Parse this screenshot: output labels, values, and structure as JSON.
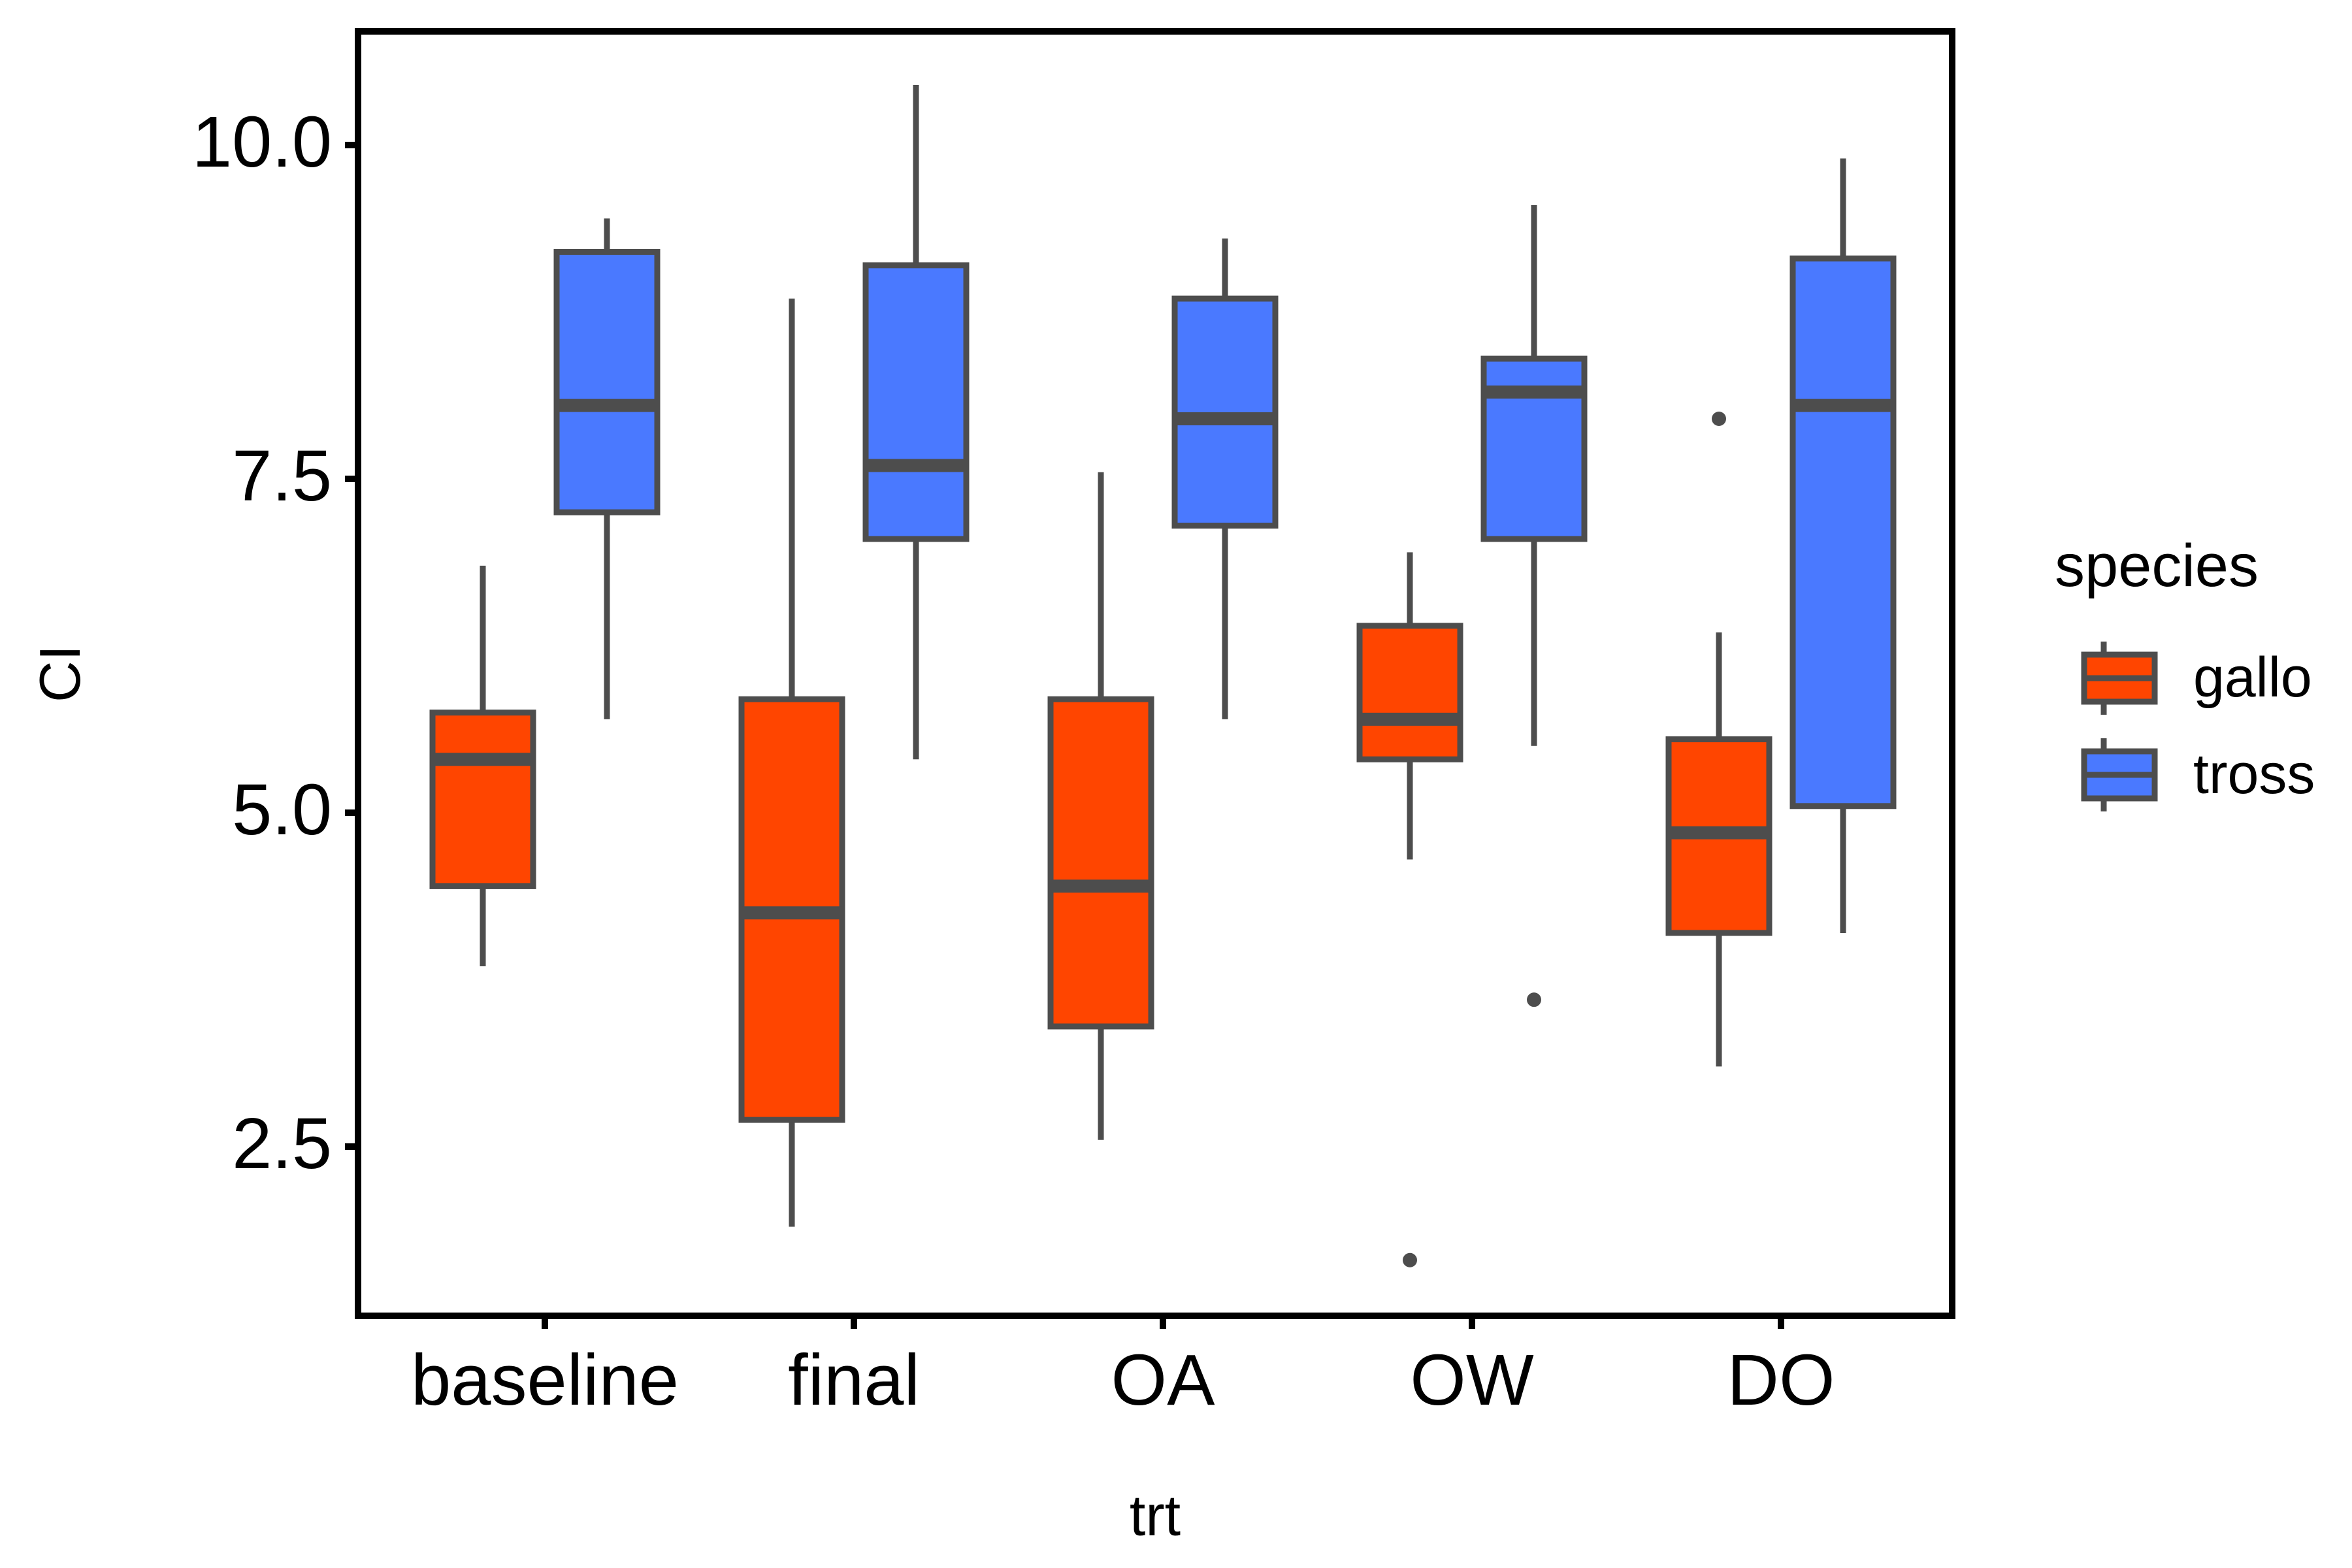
{
  "chart_data": {
    "type": "boxplot",
    "xlabel": "trt",
    "ylabel": "CI",
    "categories": [
      "baseline",
      "final",
      "OA",
      "OW",
      "DO"
    ],
    "y_ticks": [
      "2.5",
      "5.0",
      "7.5",
      "10.0"
    ],
    "y_tick_values": [
      2.5,
      5.0,
      7.5,
      10.0
    ],
    "ylim": [
      1.2,
      10.9
    ],
    "grid": false,
    "legend": {
      "title": "species",
      "position": "right",
      "entries": [
        "gallo",
        "tross"
      ]
    },
    "series": [
      {
        "name": "gallo",
        "color": "#FF4500",
        "boxes": [
          {
            "min": 3.85,
            "q1": 4.45,
            "median": 5.4,
            "q3": 5.75,
            "max": 6.85,
            "outliers": []
          },
          {
            "min": 1.9,
            "q1": 2.7,
            "median": 4.25,
            "q3": 5.85,
            "max": 8.85,
            "outliers": []
          },
          {
            "min": 2.55,
            "q1": 3.4,
            "median": 4.45,
            "q3": 5.85,
            "max": 7.55,
            "outliers": []
          },
          {
            "min": 4.65,
            "q1": 5.4,
            "median": 5.7,
            "q3": 6.4,
            "max": 6.95,
            "outliers": [
              1.65
            ]
          },
          {
            "min": 3.1,
            "q1": 4.1,
            "median": 4.85,
            "q3": 5.55,
            "max": 6.35,
            "outliers": [
              7.95
            ]
          }
        ]
      },
      {
        "name": "tross",
        "color": "#4A79FF",
        "boxes": [
          {
            "min": 5.7,
            "q1": 7.25,
            "median": 8.05,
            "q3": 9.2,
            "max": 9.45,
            "outliers": []
          },
          {
            "min": 5.4,
            "q1": 7.05,
            "median": 7.6,
            "q3": 9.1,
            "max": 10.45,
            "outliers": []
          },
          {
            "min": 5.7,
            "q1": 7.15,
            "median": 7.95,
            "q3": 8.85,
            "max": 9.3,
            "outliers": []
          },
          {
            "min": 5.5,
            "q1": 7.05,
            "median": 8.15,
            "q3": 8.4,
            "max": 9.55,
            "outliers": [
              3.6
            ]
          },
          {
            "min": 4.1,
            "q1": 5.05,
            "median": 8.05,
            "q3": 9.15,
            "max": 9.9,
            "outliers": []
          }
        ]
      }
    ]
  }
}
